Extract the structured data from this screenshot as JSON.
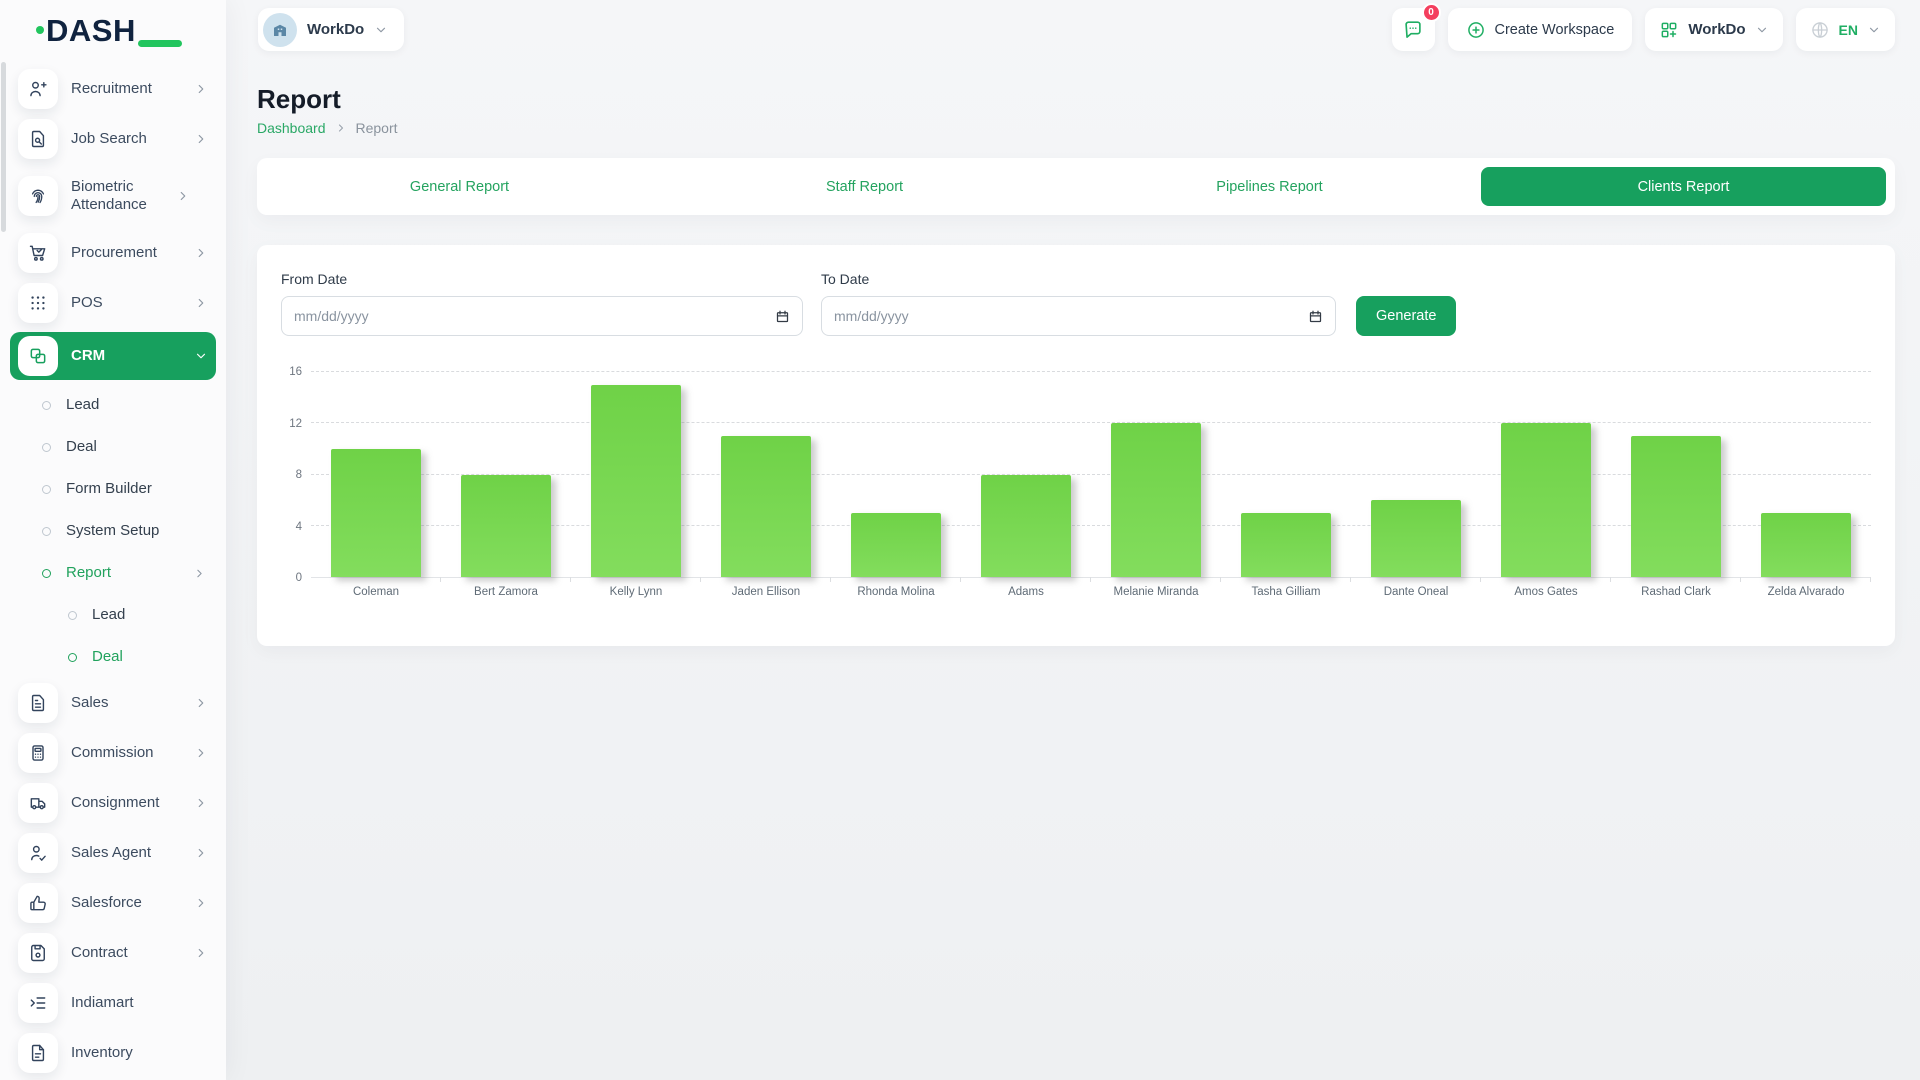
{
  "brand": {
    "logo_text": "DASH",
    "accent_green": "#17a05e"
  },
  "header": {
    "workspace_pill_label": "WorkDo",
    "messages_badge": "0",
    "create_workspace_label": "Create Workspace",
    "app_menu_label": "WorkDo",
    "language_label": "EN"
  },
  "sidebar": {
    "items": [
      {
        "label": "Recruitment",
        "icon": "user-plus-icon"
      },
      {
        "label": "Job Search",
        "icon": "file-search-icon"
      },
      {
        "label": "Biometric Attendance",
        "icon": "fingerprint-icon"
      },
      {
        "label": "Procurement",
        "icon": "cart-icon"
      },
      {
        "label": "POS",
        "icon": "grid-dots-icon"
      },
      {
        "label": "CRM",
        "icon": "apps-icon",
        "active": true
      },
      {
        "label": "Sales",
        "icon": "file-invoice-icon"
      },
      {
        "label": "Commission",
        "icon": "calculator-icon"
      },
      {
        "label": "Consignment",
        "icon": "truck-icon"
      },
      {
        "label": "Sales Agent",
        "icon": "user-check-icon"
      },
      {
        "label": "Salesforce",
        "icon": "thumb-up-icon"
      },
      {
        "label": "Contract",
        "icon": "floppy-icon"
      },
      {
        "label": "Indiamart",
        "icon": "indent-icon"
      },
      {
        "label": "Inventory",
        "icon": "file-icon"
      }
    ],
    "crm_children": [
      {
        "label": "Lead"
      },
      {
        "label": "Deal"
      },
      {
        "label": "Form Builder"
      },
      {
        "label": "System Setup"
      },
      {
        "label": "Report",
        "active": true
      }
    ],
    "report_children": [
      {
        "label": "Lead"
      },
      {
        "label": "Deal",
        "active": true
      }
    ]
  },
  "page": {
    "title": "Report",
    "breadcrumb_link": "Dashboard",
    "breadcrumb_current": "Report"
  },
  "tabs": [
    {
      "label": "General Report"
    },
    {
      "label": "Staff Report"
    },
    {
      "label": "Pipelines Report"
    },
    {
      "label": "Clients Report",
      "active": true
    }
  ],
  "filter": {
    "from_label": "From Date",
    "to_label": "To Date",
    "date_placeholder": "mm/dd/yyyy",
    "generate_label": "Generate"
  },
  "chart_data": {
    "type": "bar",
    "categories": [
      "Coleman",
      "Bert Zamora",
      "Kelly Lynn",
      "Jaden Ellison",
      "Rhonda Molina",
      "Adams",
      "Melanie Miranda",
      "Tasha Gilliam",
      "Dante Oneal",
      "Amos Gates",
      "Rashad Clark",
      "Zelda Alvarado"
    ],
    "values": [
      10,
      8,
      15,
      11,
      5,
      8,
      12,
      5,
      6,
      12,
      11,
      5
    ],
    "title": "",
    "xlabel": "",
    "ylabel": "",
    "ylim": [
      0,
      16
    ],
    "yticks": [
      0,
      4,
      8,
      12,
      16
    ],
    "grid": "horizontal-dashed",
    "legend": "none",
    "bar_color": "#77d755"
  }
}
